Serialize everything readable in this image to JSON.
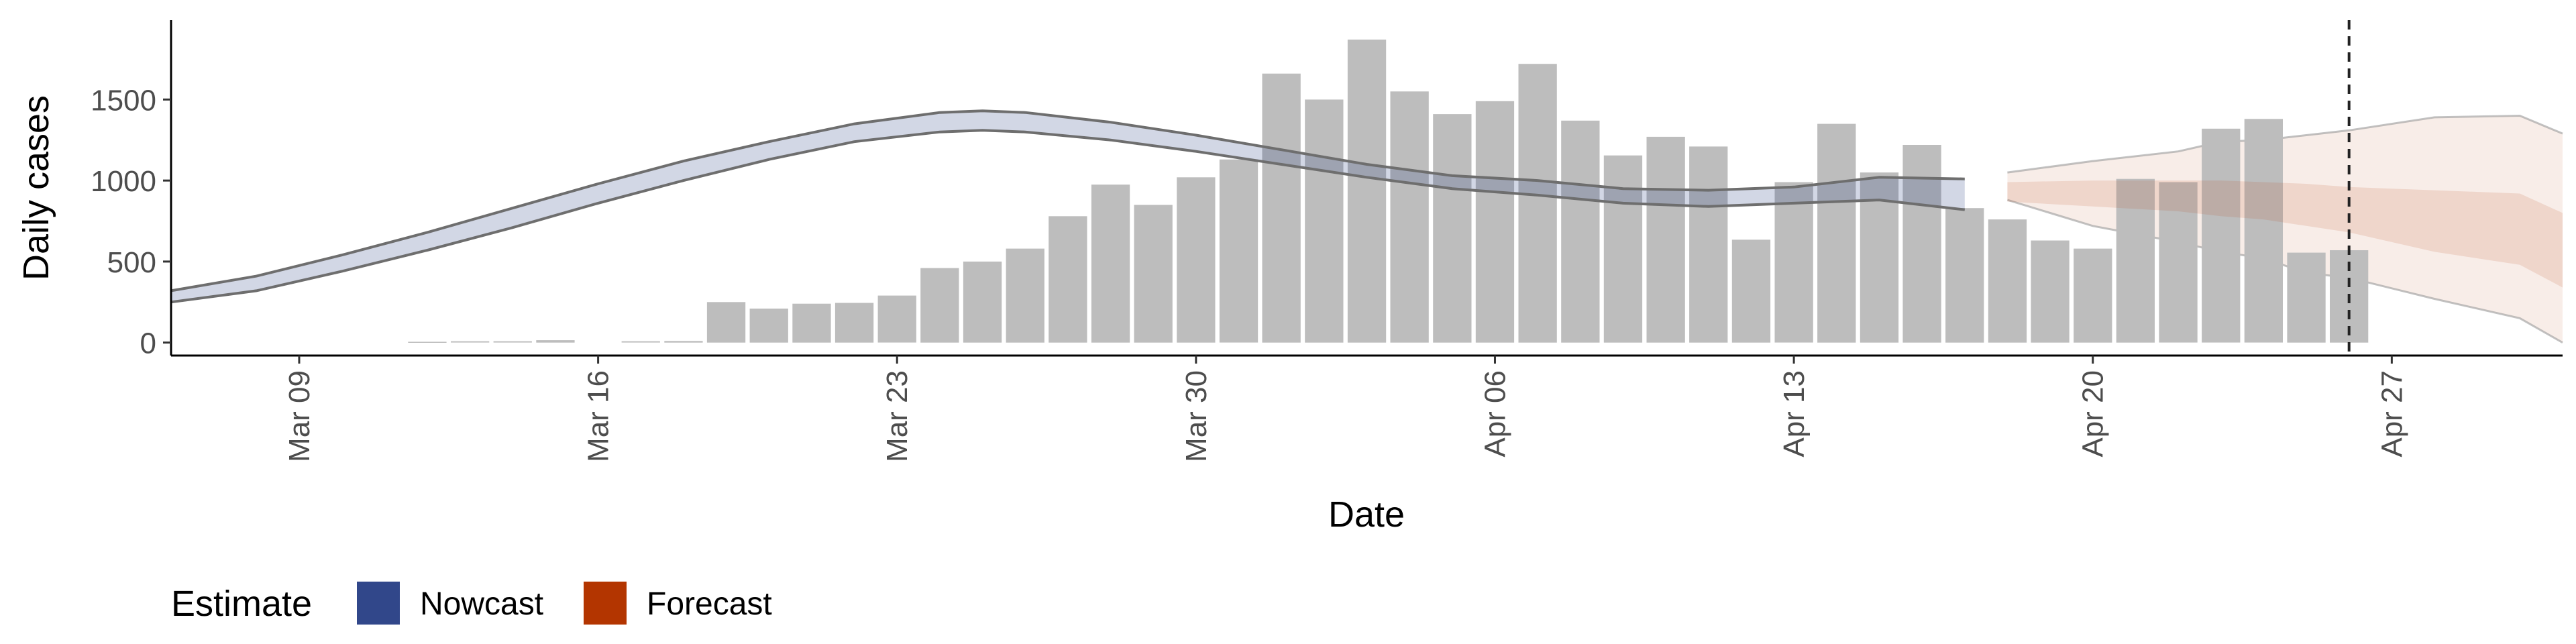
{
  "chart_data": {
    "type": "bar",
    "title": "",
    "xlabel": "Date",
    "ylabel": "Daily cases",
    "x_domain": [
      "2020-03-06",
      "2020-05-01"
    ],
    "ylim": [
      -80,
      1990
    ],
    "yticks": [
      0,
      500,
      1000,
      1500
    ],
    "xticks": [
      {
        "date": "2020-03-09",
        "label": "Mar 09"
      },
      {
        "date": "2020-03-16",
        "label": "Mar 16"
      },
      {
        "date": "2020-03-23",
        "label": "Mar 23"
      },
      {
        "date": "2020-03-30",
        "label": "Mar 30"
      },
      {
        "date": "2020-04-06",
        "label": "Apr 06"
      },
      {
        "date": "2020-04-13",
        "label": "Apr 13"
      },
      {
        "date": "2020-04-20",
        "label": "Apr 20"
      },
      {
        "date": "2020-04-27",
        "label": "Apr 27"
      }
    ],
    "grid": false,
    "bar_color": "#bdbdbd",
    "bars": {
      "dates": [
        "2020-03-12",
        "2020-03-13",
        "2020-03-14",
        "2020-03-15",
        "2020-03-16",
        "2020-03-17",
        "2020-03-18",
        "2020-03-19",
        "2020-03-20",
        "2020-03-21",
        "2020-03-22",
        "2020-03-23",
        "2020-03-24",
        "2020-03-25",
        "2020-03-26",
        "2020-03-27",
        "2020-03-28",
        "2020-03-29",
        "2020-03-30",
        "2020-03-31",
        "2020-04-01",
        "2020-04-02",
        "2020-04-03",
        "2020-04-04",
        "2020-04-05",
        "2020-04-06",
        "2020-04-07",
        "2020-04-08",
        "2020-04-09",
        "2020-04-10",
        "2020-04-11",
        "2020-04-12",
        "2020-04-13",
        "2020-04-14",
        "2020-04-15",
        "2020-04-16",
        "2020-04-17",
        "2020-04-18",
        "2020-04-19",
        "2020-04-20",
        "2020-04-21",
        "2020-04-22",
        "2020-04-23",
        "2020-04-24",
        "2020-04-25",
        "2020-04-26"
      ],
      "values": [
        5,
        8,
        8,
        15,
        0,
        8,
        10,
        250,
        210,
        240,
        245,
        290,
        460,
        500,
        580,
        780,
        975,
        850,
        1020,
        1130,
        1660,
        1500,
        1870,
        1550,
        1410,
        1490,
        1720,
        1370,
        1155,
        1270,
        1210,
        635,
        990,
        1350,
        1050,
        1220,
        830,
        760,
        630,
        580,
        1010,
        990,
        1320,
        1380,
        555,
        570
      ]
    },
    "nowcast": {
      "name": "Nowcast",
      "color": "#31478a",
      "dates": [
        "2020-03-06",
        "2020-03-08",
        "2020-03-10",
        "2020-03-12",
        "2020-03-14",
        "2020-03-16",
        "2020-03-18",
        "2020-03-20",
        "2020-03-22",
        "2020-03-24",
        "2020-03-25",
        "2020-03-26",
        "2020-03-28",
        "2020-03-30",
        "2020-04-01",
        "2020-04-03",
        "2020-04-05",
        "2020-04-07",
        "2020-04-09",
        "2020-04-11",
        "2020-04-13",
        "2020-04-15",
        "2020-04-17"
      ],
      "lower": [
        250,
        320,
        440,
        570,
        710,
        860,
        1000,
        1130,
        1240,
        1300,
        1310,
        1300,
        1250,
        1180,
        1100,
        1020,
        950,
        910,
        860,
        840,
        860,
        880,
        820
      ],
      "upper": [
        320,
        410,
        540,
        680,
        830,
        980,
        1120,
        1240,
        1350,
        1420,
        1430,
        1420,
        1360,
        1280,
        1190,
        1100,
        1030,
        1000,
        950,
        940,
        960,
        1020,
        1010
      ]
    },
    "forecast": {
      "name": "Forecast",
      "color": "#b33500",
      "dates": [
        "2020-04-18",
        "2020-04-20",
        "2020-04-22",
        "2020-04-23",
        "2020-04-24",
        "2020-04-25",
        "2020-04-26",
        "2020-04-28",
        "2020-04-30",
        "2020-05-01"
      ],
      "lower90": [
        880,
        720,
        620,
        560,
        520,
        430,
        400,
        270,
        150,
        0
      ],
      "upper90": [
        1050,
        1120,
        1180,
        1240,
        1250,
        1280,
        1310,
        1390,
        1400,
        1290
      ],
      "lower50": [
        870,
        840,
        810,
        780,
        760,
        720,
        680,
        560,
        480,
        340
      ],
      "upper50": [
        990,
        1000,
        1000,
        1000,
        990,
        980,
        960,
        940,
        920,
        800
      ]
    },
    "forecast_start_line": "2020-04-26",
    "legend": {
      "position": "bottom-left",
      "title": "Estimate",
      "entries": [
        {
          "label": "Nowcast",
          "color": "#31478a"
        },
        {
          "label": "Forecast",
          "color": "#b33500"
        }
      ]
    }
  }
}
